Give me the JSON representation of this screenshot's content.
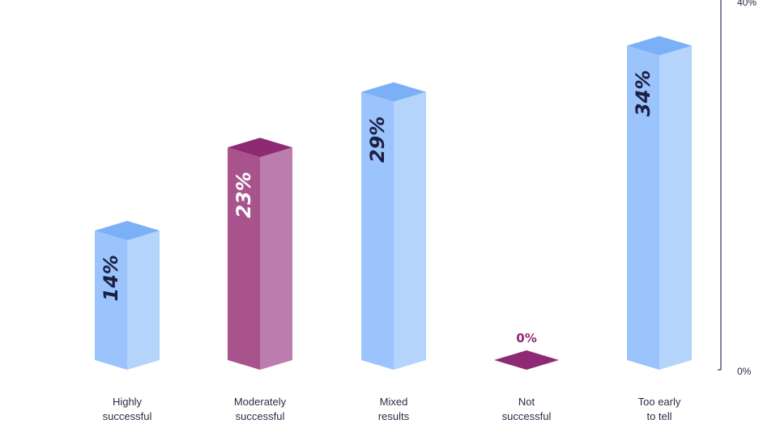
{
  "chart_data": {
    "type": "bar",
    "categories": [
      [
        "Highly",
        "successful"
      ],
      [
        "Moderately",
        "successful"
      ],
      [
        "Mixed",
        "results"
      ],
      [
        "Not",
        "successful"
      ],
      [
        "Too early",
        "to tell"
      ]
    ],
    "values": [
      14,
      23,
      29,
      0,
      34
    ],
    "value_labels": [
      "14%",
      "23%",
      "29%",
      "0%",
      "34%"
    ],
    "ylim": [
      0,
      40
    ],
    "y_ticks": [
      "0%",
      "40%"
    ],
    "highlight_index": [
      1,
      3
    ],
    "grid": false,
    "colors": {
      "bar_top": "#7bb0f7",
      "bar_front": "#9ac4fb",
      "bar_side": "#b5d4fb",
      "highlight_top": "#8e2a74",
      "highlight_front": "#a9538d",
      "highlight_side": "#bd7cae",
      "label_dark": "#1b1f45",
      "label_light": "#ffffff",
      "zero_label": "#8e2a74",
      "axis": "#2a2d6b"
    }
  }
}
